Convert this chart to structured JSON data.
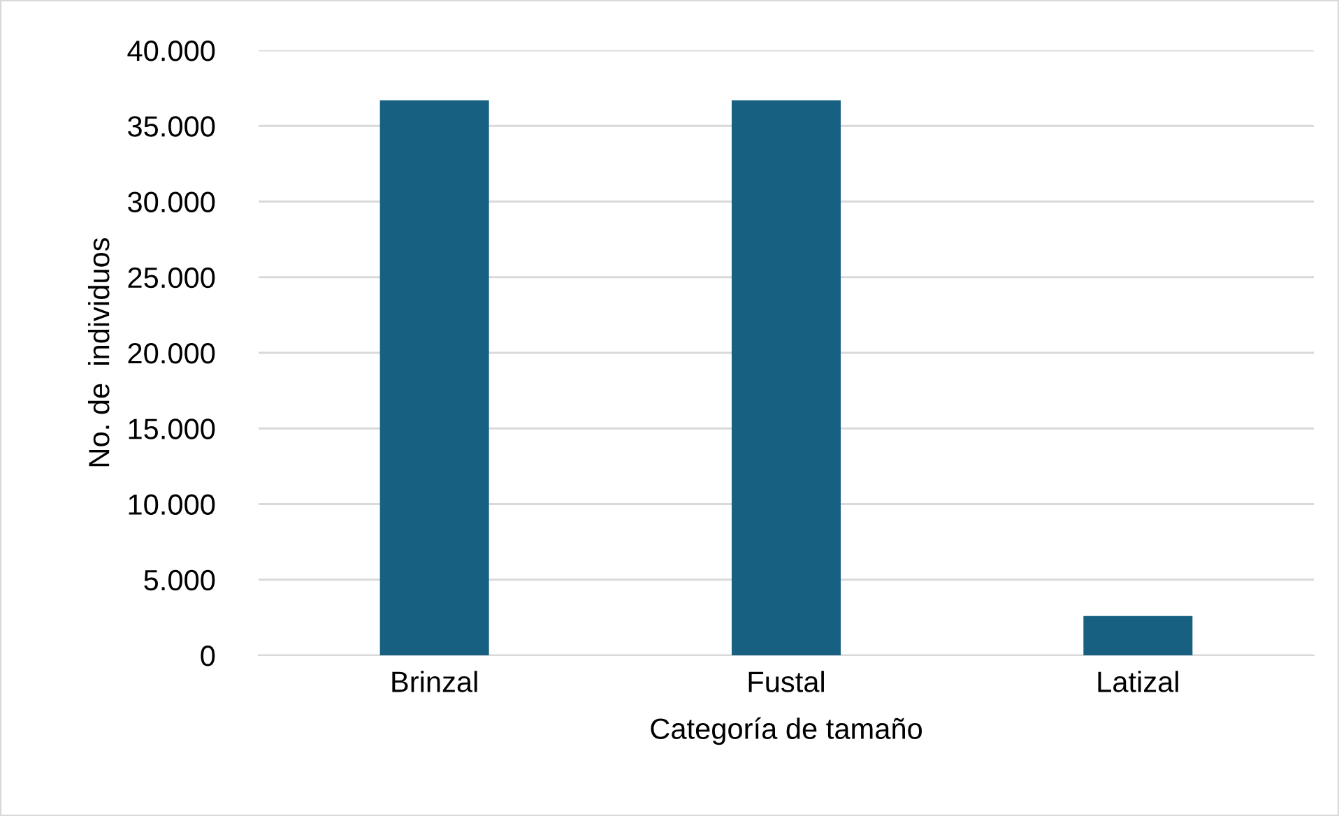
{
  "chart_data": {
    "type": "bar",
    "xlabel": "Categoría de tamaño",
    "ylabel": "No. de  individuos",
    "categories": [
      "Brinzal",
      "Fustal",
      "Latizal"
    ],
    "values": [
      36700,
      36700,
      2600
    ],
    "color": "#176082",
    "ylim": [
      0,
      40000
    ],
    "yticks": [
      {
        "value": 0,
        "label": "0"
      },
      {
        "value": 5000,
        "label": "5.000"
      },
      {
        "value": 10000,
        "label": "10.000"
      },
      {
        "value": 15000,
        "label": "15.000"
      },
      {
        "value": 20000,
        "label": "20.000"
      },
      {
        "value": 25000,
        "label": "25.000"
      },
      {
        "value": 30000,
        "label": "30.000"
      },
      {
        "value": 35000,
        "label": "35.000"
      },
      {
        "value": 40000,
        "label": "40.000"
      }
    ],
    "grid": "y"
  }
}
